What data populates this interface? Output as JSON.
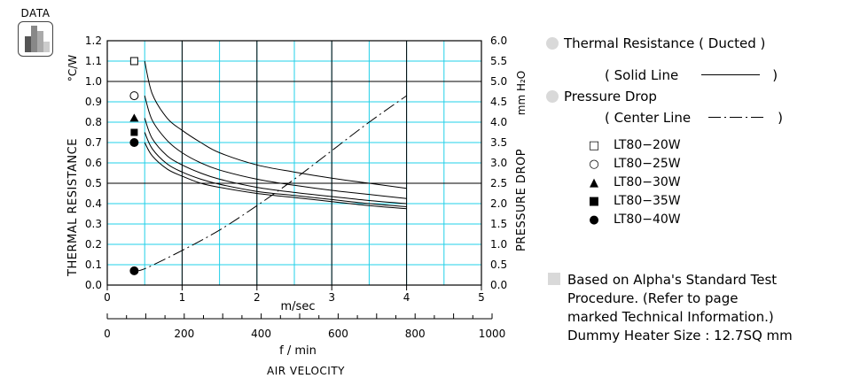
{
  "badge": {
    "label": "DATA",
    "icon": "bar-chart-icon"
  },
  "chart_data": {
    "type": "line",
    "title": "",
    "xlabel": "m/sec",
    "xlabel_secondary": "f / min",
    "xlabel_bottom": "AIR VELOCITY",
    "ylabel_left": "THERMAL  RESISTANCE",
    "ylabel_left_unit": "°C/W",
    "ylabel_right": "PRESSURE  DROP",
    "ylabel_right_unit": "mm H₂O",
    "xlim": [
      0,
      5
    ],
    "ylim_left": [
      0.0,
      1.2
    ],
    "ylim_right": [
      0.0,
      6.0
    ],
    "xlim_secondary": [
      0,
      1000
    ],
    "x_ticks": [
      "0",
      "1",
      "2",
      "3",
      "4",
      "5"
    ],
    "x_ticks_secondary": [
      "0",
      "200",
      "400",
      "600",
      "800",
      "1000"
    ],
    "y_ticks_left": [
      "0.0",
      "0.1",
      "0.2",
      "0.3",
      "0.4",
      "0.5",
      "0.6",
      "0.7",
      "0.8",
      "0.9",
      "1.0",
      "1.1",
      "1.2"
    ],
    "y_ticks_right": [
      "0.0",
      "0.5",
      "1.0",
      "1.5",
      "2.0",
      "2.5",
      "3.0",
      "3.5",
      "4.0",
      "4.5",
      "5.0",
      "5.5",
      "6.0"
    ],
    "grid": true,
    "series": [
      {
        "name": "LT80−20W",
        "marker": "open-square",
        "marker_value": 1.1,
        "x": [
          0.5,
          0.6,
          0.8,
          1.0,
          1.25,
          1.5,
          2.0,
          2.5,
          3.0,
          3.5,
          4.0
        ],
        "y": [
          1.1,
          0.94,
          0.82,
          0.76,
          0.7,
          0.65,
          0.59,
          0.555,
          0.525,
          0.5,
          0.475
        ]
      },
      {
        "name": "LT80−25W",
        "marker": "open-circle",
        "marker_value": 0.93,
        "x": [
          0.5,
          0.6,
          0.8,
          1.0,
          1.25,
          1.5,
          2.0,
          2.5,
          3.0,
          3.5,
          4.0
        ],
        "y": [
          0.93,
          0.81,
          0.71,
          0.65,
          0.6,
          0.565,
          0.52,
          0.49,
          0.465,
          0.445,
          0.425
        ]
      },
      {
        "name": "LT80−30W",
        "marker": "filled-triangle",
        "marker_value": 0.82,
        "x": [
          0.5,
          0.6,
          0.8,
          1.0,
          1.25,
          1.5,
          2.0,
          2.5,
          3.0,
          3.5,
          4.0
        ],
        "y": [
          0.82,
          0.72,
          0.635,
          0.59,
          0.55,
          0.52,
          0.48,
          0.455,
          0.435,
          0.415,
          0.4
        ]
      },
      {
        "name": "LT80−35W",
        "marker": "filled-square",
        "marker_value": 0.75,
        "x": [
          0.5,
          0.6,
          0.8,
          1.0,
          1.25,
          1.5,
          2.0,
          2.5,
          3.0,
          3.5,
          4.0
        ],
        "y": [
          0.75,
          0.67,
          0.595,
          0.555,
          0.52,
          0.495,
          0.46,
          0.44,
          0.42,
          0.4,
          0.385
        ]
      },
      {
        "name": "LT80−40W",
        "marker": "filled-circle",
        "marker_value": 0.7,
        "x": [
          0.5,
          0.6,
          0.8,
          1.0,
          1.25,
          1.5,
          2.0,
          2.5,
          3.0,
          3.5,
          4.0
        ],
        "y": [
          0.7,
          0.635,
          0.57,
          0.535,
          0.5,
          0.48,
          0.45,
          0.43,
          0.41,
          0.39,
          0.375
        ]
      },
      {
        "name": "Pressure Drop",
        "axis": "right",
        "style": "dash-dot",
        "marker": "filled-circle",
        "x": [
          0.36,
          0.5,
          1.0,
          1.5,
          2.0,
          2.5,
          3.0,
          3.5,
          4.0
        ],
        "y": [
          0.35,
          0.4,
          0.85,
          1.35,
          1.95,
          2.6,
          3.3,
          4.0,
          4.65
        ]
      }
    ],
    "legend": {
      "thermal_title": "Thermal Resistance",
      "thermal_sub": "( Ducted )",
      "solid_label": "( Solid Line",
      "solid_close": ")",
      "pressure_title": "Pressure Drop",
      "center_label": "( Center Line",
      "center_close": ")"
    }
  },
  "note": {
    "lines": [
      "Based on Alpha's Standard Test",
      "Procedure.  (Refer to page",
      "marked Technical Information.)",
      "Dummy Heater Size :   12.7SQ mm"
    ]
  },
  "colors": {
    "grid": "#22d0e8",
    "line": "#000000",
    "badge_bg": "#d9d9d9"
  }
}
